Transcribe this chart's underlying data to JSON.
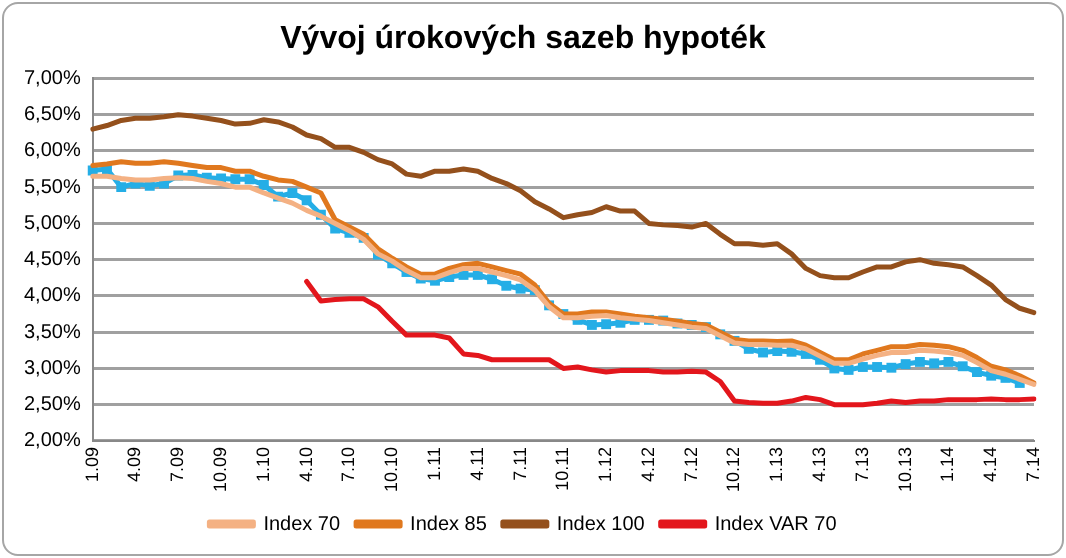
{
  "chart_data": {
    "type": "line",
    "title": "Vývoj úrokových sazeb hypoték",
    "categories": [
      "1.09",
      null,
      null,
      "4.09",
      null,
      null,
      "7.09",
      null,
      null,
      "10.09",
      null,
      null,
      "1.10",
      null,
      null,
      "4.10",
      null,
      null,
      "7.10",
      null,
      null,
      "10.10",
      null,
      null,
      "1.11",
      null,
      null,
      "4.11",
      null,
      null,
      "7.11",
      null,
      null,
      "10.11",
      null,
      null,
      "1.12",
      null,
      null,
      "4.12",
      null,
      null,
      "7.12",
      null,
      null,
      "10.12",
      null,
      null,
      "1.13",
      null,
      null,
      "4.13",
      null,
      null,
      "7.13",
      null,
      null,
      "10.13",
      null,
      null,
      "1.14",
      null,
      null,
      "4.14",
      null,
      null,
      "7.14"
    ],
    "series": [
      {
        "name": "Index 70",
        "color": "#f4b183",
        "marker": "none",
        "values": [
          5.65,
          5.65,
          5.62,
          5.6,
          5.6,
          5.62,
          5.63,
          5.62,
          5.58,
          5.55,
          5.5,
          5.5,
          5.42,
          5.35,
          5.28,
          5.18,
          5.1,
          5.0,
          4.9,
          4.78,
          4.58,
          4.48,
          4.35,
          4.25,
          4.25,
          4.32,
          4.38,
          4.38,
          4.33,
          4.28,
          4.22,
          4.08,
          3.85,
          3.7,
          3.7,
          3.72,
          3.73,
          3.7,
          3.68,
          3.66,
          3.63,
          3.6,
          3.57,
          3.55,
          3.45,
          3.35,
          3.33,
          3.33,
          3.32,
          3.32,
          3.27,
          3.17,
          3.07,
          3.07,
          3.13,
          3.18,
          3.22,
          3.22,
          3.25,
          3.24,
          3.22,
          3.18,
          3.08,
          2.97,
          2.92,
          2.85,
          2.78
        ]
      },
      {
        "name": "Index 85",
        "color": "#e0781e",
        "marker": "none",
        "values": [
          5.8,
          5.82,
          5.85,
          5.83,
          5.83,
          5.85,
          5.83,
          5.8,
          5.77,
          5.77,
          5.72,
          5.72,
          5.65,
          5.6,
          5.58,
          5.5,
          5.42,
          5.05,
          4.95,
          4.85,
          4.65,
          4.52,
          4.4,
          4.3,
          4.3,
          4.38,
          4.43,
          4.45,
          4.4,
          4.35,
          4.3,
          4.15,
          3.9,
          3.75,
          3.75,
          3.78,
          3.78,
          3.75,
          3.72,
          3.7,
          3.68,
          3.65,
          3.62,
          3.6,
          3.5,
          3.4,
          3.38,
          3.38,
          3.37,
          3.38,
          3.32,
          3.22,
          3.12,
          3.12,
          3.2,
          3.25,
          3.3,
          3.3,
          3.33,
          3.32,
          3.3,
          3.25,
          3.15,
          3.03,
          2.98,
          2.9,
          2.8
        ]
      },
      {
        "name": "Index 100",
        "color": "#94501c",
        "marker": "none",
        "values": [
          6.3,
          6.35,
          6.42,
          6.45,
          6.45,
          6.47,
          6.5,
          6.48,
          6.45,
          6.42,
          6.37,
          6.38,
          6.43,
          6.4,
          6.33,
          6.22,
          6.17,
          6.05,
          6.05,
          5.98,
          5.88,
          5.82,
          5.68,
          5.65,
          5.72,
          5.72,
          5.75,
          5.72,
          5.62,
          5.55,
          5.45,
          5.3,
          5.2,
          5.08,
          5.12,
          5.15,
          5.23,
          5.17,
          5.17,
          5.0,
          4.98,
          4.97,
          4.95,
          5.0,
          4.85,
          4.72,
          4.72,
          4.7,
          4.72,
          4.58,
          4.38,
          4.28,
          4.25,
          4.25,
          4.33,
          4.4,
          4.4,
          4.47,
          4.5,
          4.45,
          4.43,
          4.4,
          4.28,
          4.15,
          3.95,
          3.83,
          3.77
        ]
      },
      {
        "color": "#25aee6",
        "marker": "square",
        "values": [
          5.73,
          5.75,
          5.5,
          5.55,
          5.52,
          5.55,
          5.66,
          5.67,
          5.63,
          5.62,
          5.61,
          5.61,
          5.53,
          5.37,
          5.42,
          5.32,
          5.12,
          4.93,
          4.87,
          4.8,
          4.57,
          4.45,
          4.33,
          4.24,
          4.21,
          4.26,
          4.29,
          4.29,
          4.23,
          4.14,
          4.1,
          4.08,
          3.87,
          3.75,
          3.67,
          3.6,
          3.61,
          3.63,
          3.67,
          3.67,
          3.66,
          3.62,
          3.6,
          3.57,
          3.47,
          3.38,
          3.27,
          3.22,
          3.24,
          3.23,
          3.2,
          3.12,
          3.0,
          2.98,
          3.02,
          3.02,
          3.01,
          3.06,
          3.09,
          3.07,
          3.09,
          3.03,
          2.95,
          2.9,
          2.87,
          2.8,
          null
        ]
      },
      {
        "name": "Index VAR 70",
        "color": "#e3161c",
        "marker": "none",
        "values": [
          null,
          null,
          null,
          null,
          null,
          null,
          null,
          null,
          null,
          null,
          null,
          null,
          null,
          null,
          null,
          4.2,
          3.93,
          3.95,
          3.96,
          3.96,
          3.85,
          3.65,
          3.46,
          3.46,
          3.46,
          3.42,
          3.2,
          3.18,
          3.12,
          3.12,
          3.12,
          3.12,
          3.12,
          3.0,
          3.02,
          2.98,
          2.95,
          2.97,
          2.97,
          2.97,
          2.95,
          2.95,
          2.96,
          2.95,
          2.82,
          2.55,
          2.53,
          2.52,
          2.52,
          2.55,
          2.6,
          2.57,
          2.5,
          2.5,
          2.5,
          2.52,
          2.55,
          2.53,
          2.55,
          2.55,
          2.57,
          2.57,
          2.57,
          2.58,
          2.57,
          2.57,
          2.58
        ]
      }
    ],
    "ylim": [
      2,
      7
    ],
    "yticks": [
      {
        "value": 2,
        "label": "2,00%"
      },
      {
        "value": 2.5,
        "label": "2,50%"
      },
      {
        "value": 3,
        "label": "3,00%"
      },
      {
        "value": 3.5,
        "label": "3,50%"
      },
      {
        "value": 4,
        "label": "4,00%"
      },
      {
        "value": 4.5,
        "label": "4,50%"
      },
      {
        "value": 5,
        "label": "5,00%"
      },
      {
        "value": 5.5,
        "label": "5,50%"
      },
      {
        "value": 6,
        "label": "6,00%"
      },
      {
        "value": 6.5,
        "label": "6,50%"
      },
      {
        "value": 7,
        "label": "7,00%"
      }
    ],
    "grid": "y",
    "legend": "bottom",
    "line_style": "solid"
  }
}
